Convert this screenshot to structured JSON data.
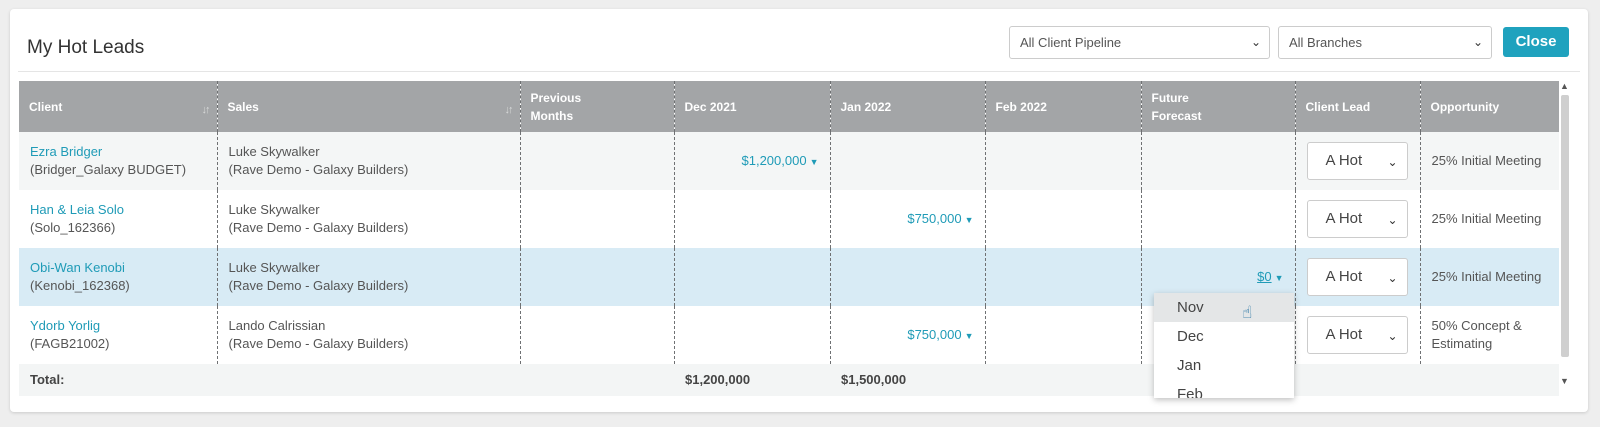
{
  "title": "My Hot Leads",
  "filters": {
    "pipeline": "All Client Pipeline",
    "branches": "All Branches",
    "close_label": "Close"
  },
  "columns": [
    "Client",
    "Sales",
    "Previous\nMonths",
    "Dec 2021",
    "Jan 2022",
    "Feb 2022",
    "Future\nForecast",
    "Client Lead",
    "Opportunity"
  ],
  "rows": [
    {
      "client_name": "Ezra Bridger",
      "client_code": "(Bridger_Galaxy BUDGET)",
      "sales_name": "Luke Skywalker",
      "sales_company": "(Rave Demo - Galaxy Builders)",
      "dec_2021": "$1,200,000",
      "jan_2022": "",
      "future": "",
      "lead": "A Hot",
      "opportunity": "25% Initial Meeting"
    },
    {
      "client_name": "Han & Leia Solo",
      "client_code": "(Solo_162366)",
      "sales_name": "Luke Skywalker",
      "sales_company": "(Rave Demo - Galaxy Builders)",
      "dec_2021": "",
      "jan_2022": "$750,000",
      "future": "",
      "lead": "A Hot",
      "opportunity": "25% Initial Meeting"
    },
    {
      "client_name": "Obi-Wan Kenobi",
      "client_code": "(Kenobi_162368)",
      "sales_name": "Luke Skywalker",
      "sales_company": "(Rave Demo - Galaxy Builders)",
      "dec_2021": "",
      "jan_2022": "",
      "future": "$0",
      "lead": "A Hot",
      "opportunity": "25% Initial Meeting"
    },
    {
      "client_name": "Ydorb Yorlig",
      "client_code": "(FAGB21002)",
      "sales_name": "Lando Calrissian",
      "sales_company": "(Rave Demo - Galaxy Builders)",
      "dec_2021": "",
      "jan_2022": "$750,000",
      "future": "",
      "lead": "A Hot",
      "opportunity": "50% Concept & Estimating"
    }
  ],
  "total": {
    "label": "Total:",
    "dec_2021": "$1,200,000",
    "jan_2022": "$1,500,000"
  },
  "forecast_dropdown": {
    "options": [
      "Nov",
      "Dec",
      "Jan",
      "Feb"
    ],
    "highlighted": "Nov"
  },
  "colors": {
    "accent": "#1fa2be",
    "header_bg": "#a3a5a7",
    "selected_row": "#d8ebf5"
  }
}
